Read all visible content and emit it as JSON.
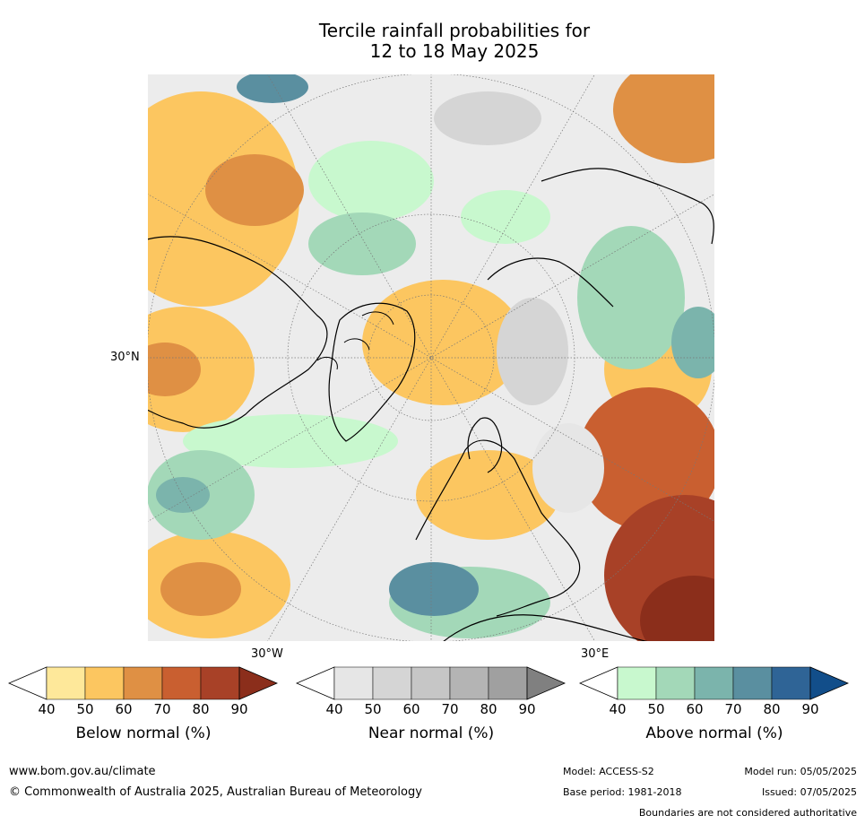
{
  "title_line1": "Tercile rainfall probabilities for",
  "title_line2": "12 to 18 May 2025",
  "map": {
    "lat_label": "30°N",
    "lon_label_left": "30°W",
    "lon_label_right": "30°E"
  },
  "colorbars": [
    {
      "label": "Below normal (%)",
      "ticks": [
        "40",
        "50",
        "60",
        "70",
        "80",
        "90"
      ],
      "colors": [
        "#ffffff",
        "#fee89a",
        "#fcc660",
        "#df9044",
        "#c95f30",
        "#a84127",
        "#8b2e1b"
      ]
    },
    {
      "label": "Near normal (%)",
      "ticks": [
        "40",
        "50",
        "60",
        "70",
        "80",
        "90"
      ],
      "colors": [
        "#ffffff",
        "#e6e6e6",
        "#d5d5d5",
        "#c6c6c6",
        "#b4b4b4",
        "#a0a0a0",
        "#808080"
      ]
    },
    {
      "label": "Above normal (%)",
      "ticks": [
        "40",
        "50",
        "60",
        "70",
        "80",
        "90"
      ],
      "colors": [
        "#ffffff",
        "#c8f8ce",
        "#a3d8b8",
        "#7bb4ac",
        "#5a8fa0",
        "#2f6496",
        "#124e8a"
      ]
    }
  ],
  "footer": {
    "website": "www.bom.gov.au/climate",
    "copyright": "© Commonwealth of Australia 2025, Australian Bureau of Meteorology",
    "model": "Model: ACCESS-S2",
    "base_period": "Base period: 1981-2018",
    "model_run": "Model run: 05/05/2025",
    "issued": "Issued: 07/05/2025",
    "disclaimer": "Boundaries are not considered authoritative"
  }
}
